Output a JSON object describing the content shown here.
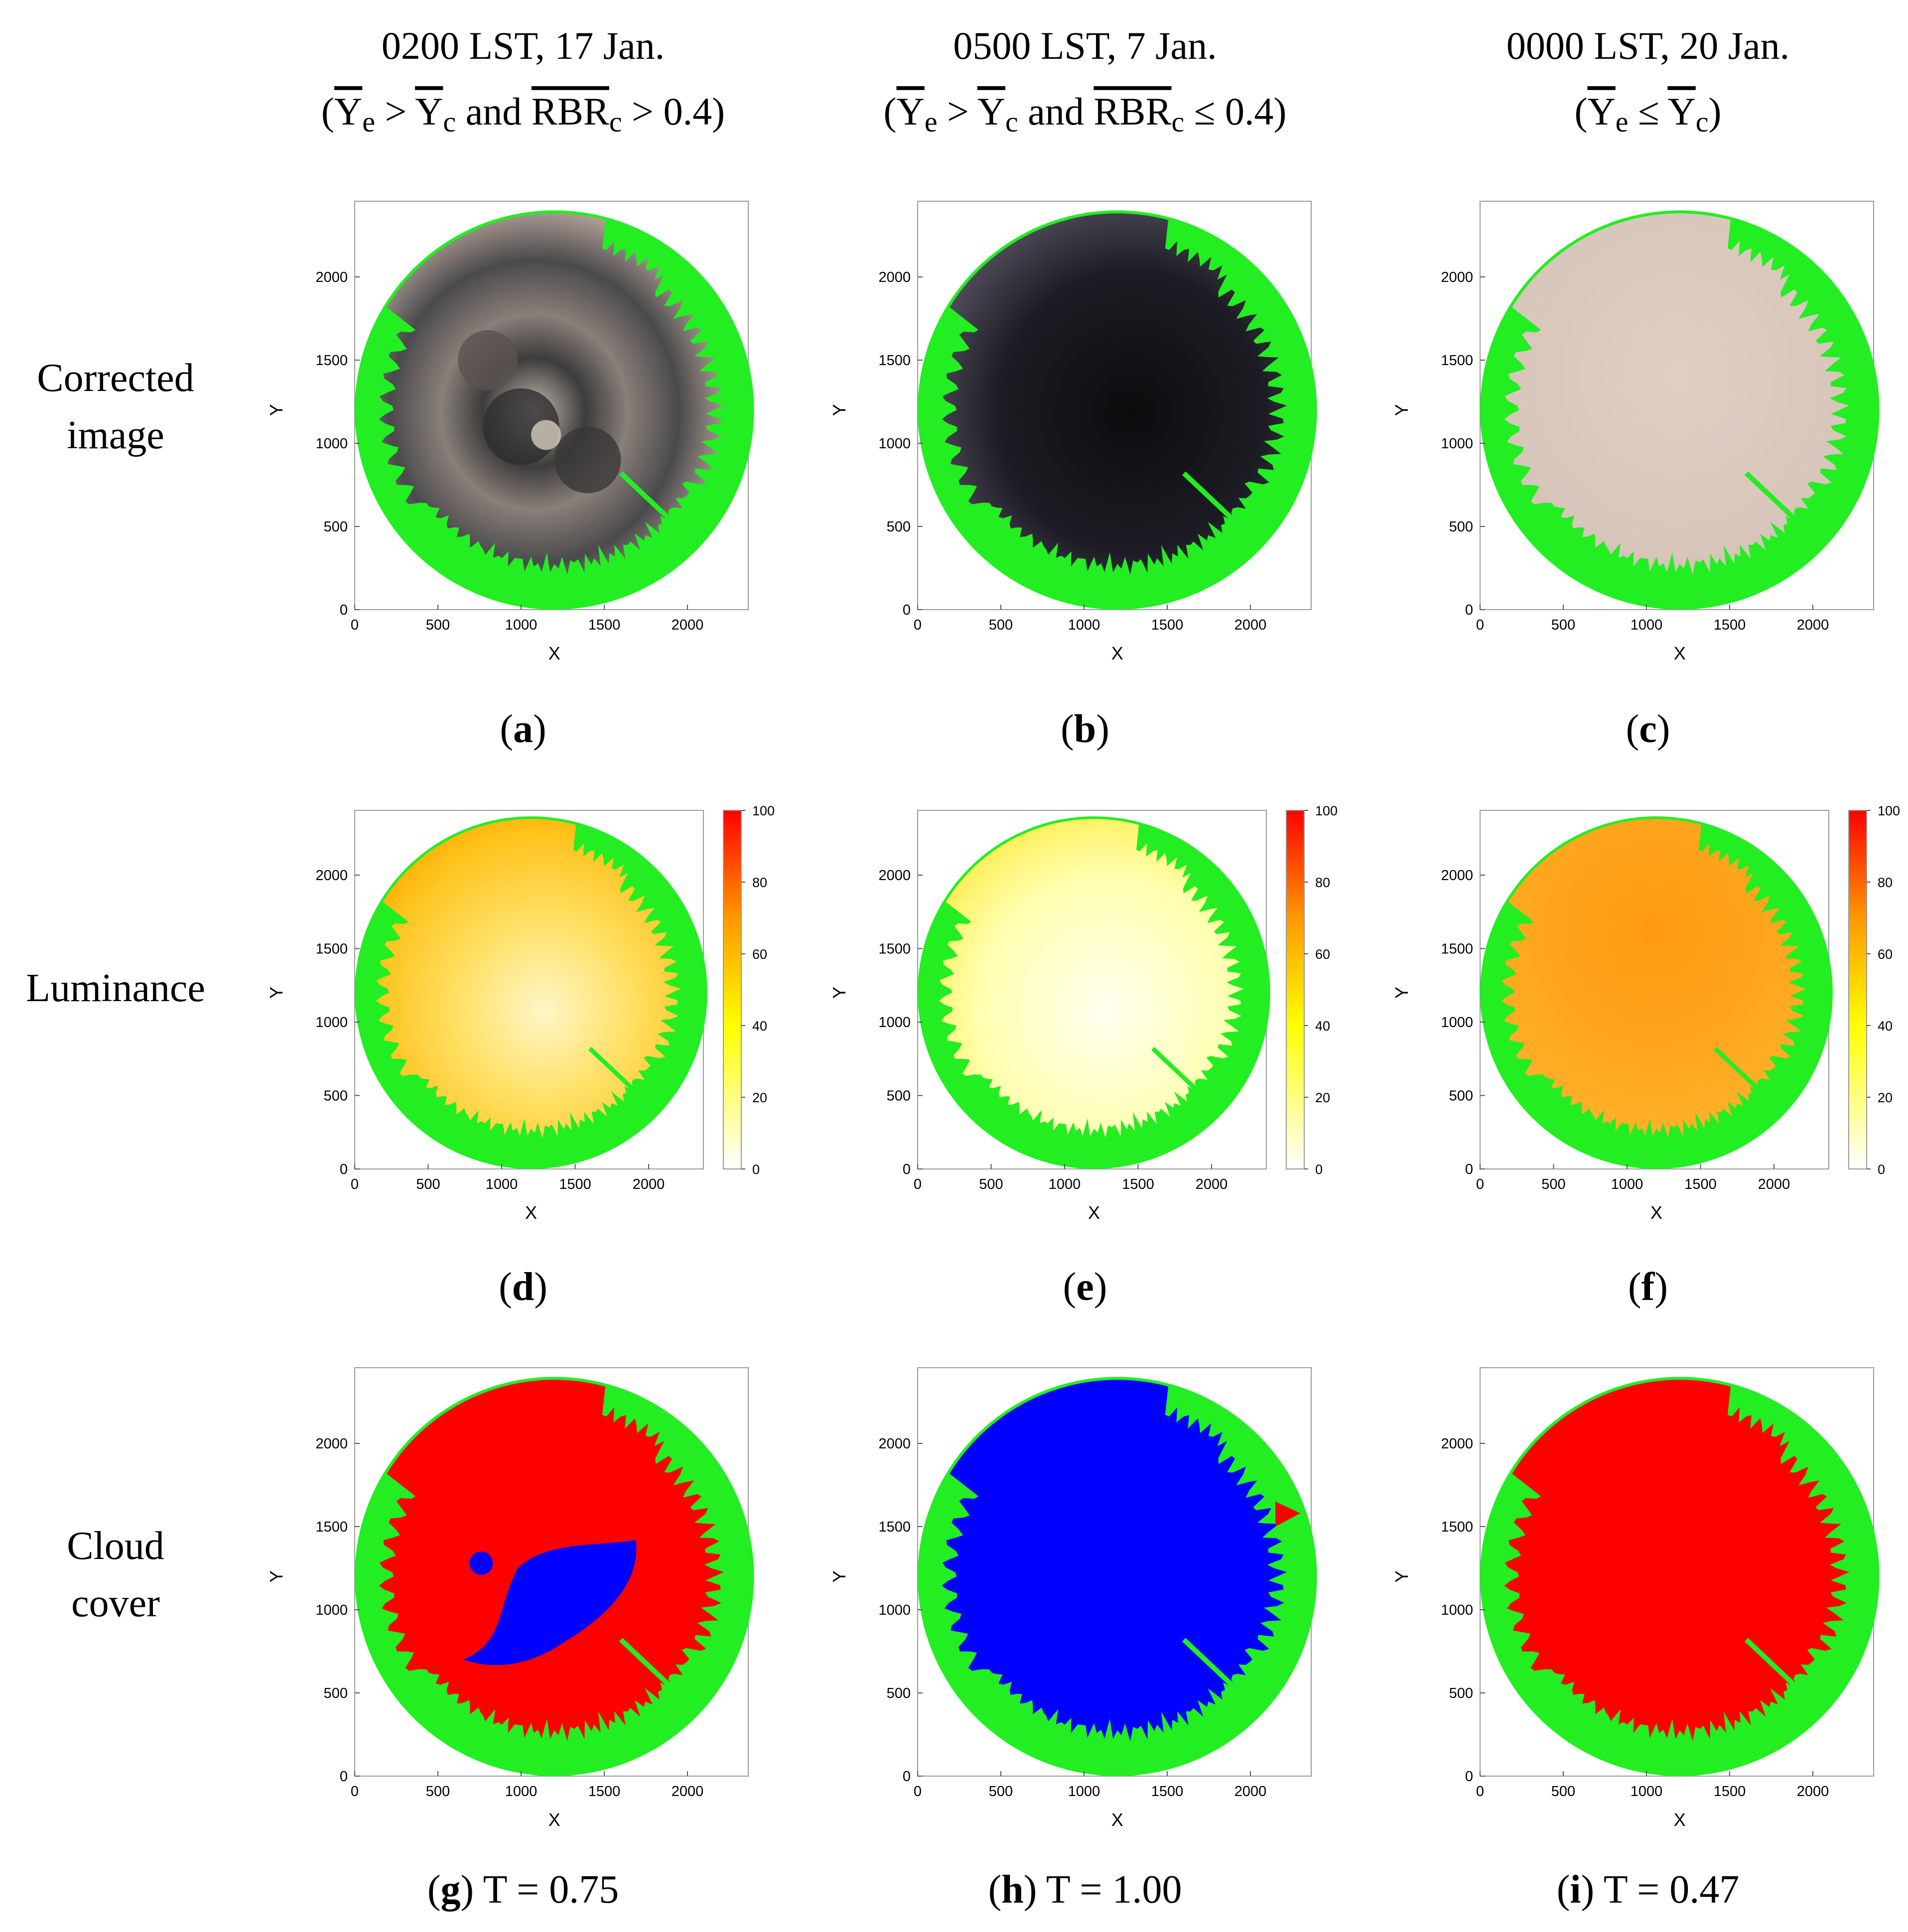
{
  "columns": [
    {
      "line1": "0200 LST, 17 Jan.",
      "cond": {
        "a": "Y",
        "a_sub": "e",
        "op1": ">",
        "b": "Y",
        "b_sub": "c",
        "conj": "and",
        "c": "RBR",
        "c_sub": "c",
        "op2": "> 0.4"
      }
    },
    {
      "line1": "0500 LST, 7 Jan.",
      "cond": {
        "a": "Y",
        "a_sub": "e",
        "op1": ">",
        "b": "Y",
        "b_sub": "c",
        "conj": "and",
        "c": "RBR",
        "c_sub": "c",
        "op2": "≤ 0.4"
      }
    },
    {
      "line1": "0000 LST, 20 Jan.",
      "cond": {
        "a": "Y",
        "a_sub": "e",
        "op1": "≤",
        "b": "Y",
        "b_sub": "c"
      }
    }
  ],
  "rows": [
    {
      "label_lines": [
        "Corrected",
        "image"
      ]
    },
    {
      "label_lines": [
        "Luminance"
      ]
    },
    {
      "label_lines": [
        "Cloud",
        "cover"
      ]
    }
  ],
  "panels": [
    {
      "letter": "a",
      "suffix": "",
      "type": "image",
      "variant": "cloudy"
    },
    {
      "letter": "b",
      "suffix": "",
      "type": "image",
      "variant": "dark"
    },
    {
      "letter": "c",
      "suffix": "",
      "type": "image",
      "variant": "pale"
    },
    {
      "letter": "d",
      "suffix": "",
      "type": "luminance",
      "variant": "cloudy"
    },
    {
      "letter": "e",
      "suffix": "",
      "type": "luminance",
      "variant": "dark"
    },
    {
      "letter": "f",
      "suffix": "",
      "type": "luminance",
      "variant": "pale"
    },
    {
      "letter": "g",
      "suffix": " T = 0.75",
      "type": "cloud",
      "variant": "mixed"
    },
    {
      "letter": "h",
      "suffix": " T = 1.00",
      "type": "cloud",
      "variant": "clear"
    },
    {
      "letter": "i",
      "suffix": " T = 0.47",
      "type": "cloud",
      "variant": "overcast"
    }
  ],
  "axes": {
    "xlabel": "X",
    "ylabel": "Y",
    "xticks": [
      0,
      500,
      1000,
      1500,
      2000
    ],
    "yticks": [
      0,
      500,
      1000,
      1500,
      2000
    ],
    "xlim": [
      0,
      2400
    ],
    "ylim": [
      0,
      2400
    ]
  },
  "colorbar": {
    "ticks": [
      0,
      20,
      40,
      60,
      80,
      100
    ],
    "range": [
      0,
      100
    ]
  },
  "colors": {
    "mask": "#22ee22",
    "cloud": "#ff0000",
    "clear_sky": "#0000ff"
  }
}
